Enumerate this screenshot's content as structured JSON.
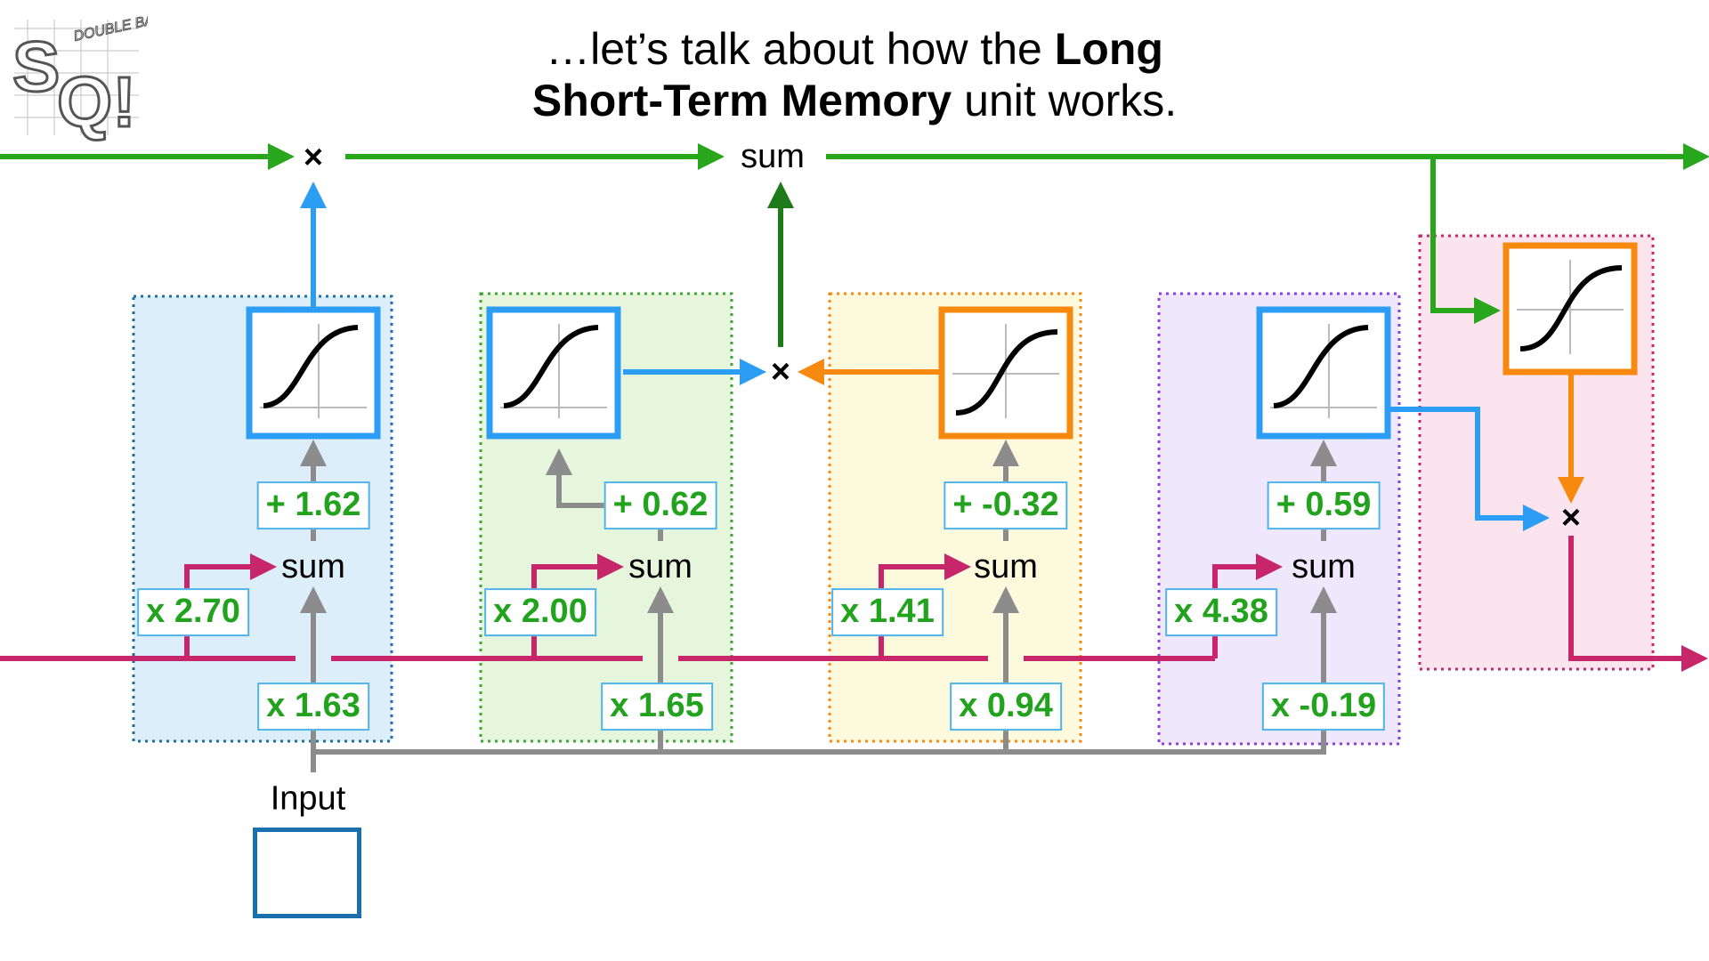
{
  "title": {
    "line1_plain": "…let’s talk about how the ",
    "line1_bold": "Long",
    "line2_bold": "Short-Term Memory",
    "line2_plain": " unit works."
  },
  "logo": {
    "text_main": "SQ!",
    "text_small": "DOUBLE BAM!!!"
  },
  "labels": {
    "sum": "sum",
    "times": "×",
    "input": "Input"
  },
  "stages": [
    {
      "id": "forget-gate",
      "color": "#2b9df4",
      "weight_short": "x 2.70",
      "weight_input": "x 1.63",
      "bias": "+ 1.62",
      "activation": "sigmoid"
    },
    {
      "id": "input-gate-percent",
      "color": "#2b9df4",
      "weight_short": "x 2.00",
      "weight_input": "x 1.65",
      "bias": "+ 0.62",
      "activation": "sigmoid"
    },
    {
      "id": "input-gate-potential",
      "color": "#f7890f",
      "weight_short": "x 1.41",
      "weight_input": "x 0.94",
      "bias": "+ -0.32",
      "activation": "tanh"
    },
    {
      "id": "output-gate",
      "color": "#2b9df4",
      "weight_short": "x 4.38",
      "weight_input": "x -0.19",
      "bias": "+ 0.59",
      "activation": "sigmoid"
    },
    {
      "id": "output-potential",
      "color": "#f7890f",
      "activation": "tanh"
    }
  ],
  "colors": {
    "long_term": "#28a71c",
    "short_term": "#c7266a",
    "input": "#8c8c8c",
    "blue_signal": "#2b9df4",
    "orange_signal": "#f7890f",
    "dark_green_signal": "#1f7a1a",
    "weight_text": "#22a31e"
  }
}
